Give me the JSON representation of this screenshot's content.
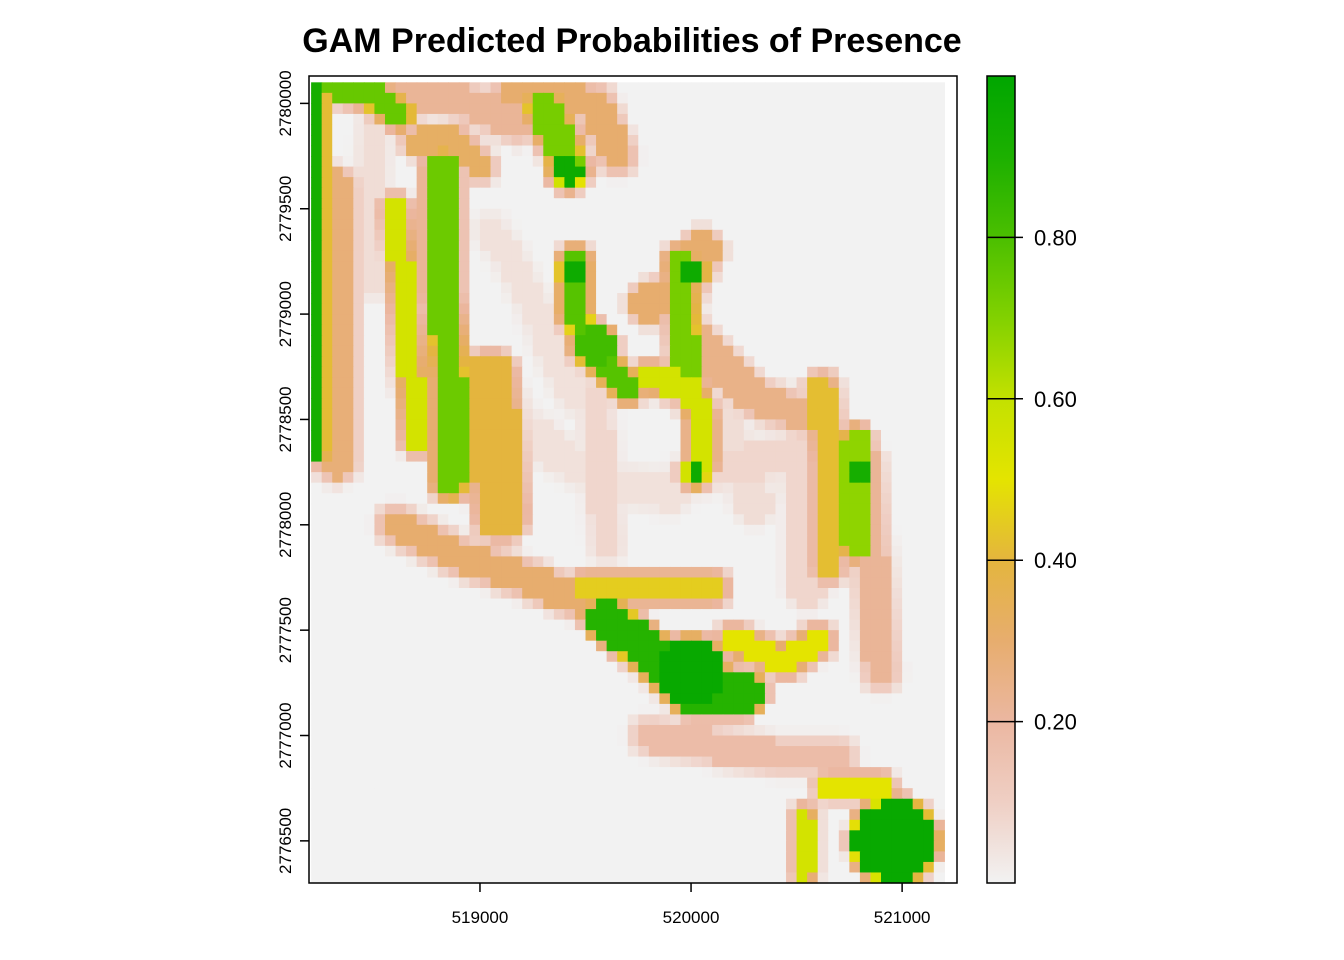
{
  "chart_data": {
    "type": "heatmap",
    "title": "GAM Predicted Probabilities of Presence",
    "xlabel": "",
    "ylabel": "",
    "xlim": [
      518190,
      521260
    ],
    "ylim": [
      2776300,
      2780130
    ],
    "x_ticks": [
      519000,
      520000,
      521000
    ],
    "x_tick_labels": [
      "519000",
      "520000",
      "521000"
    ],
    "y_ticks": [
      2776500,
      2777000,
      2777500,
      2778000,
      2778500,
      2779000,
      2779500,
      2780000
    ],
    "y_tick_labels": [
      "2776500",
      "2777000",
      "2777500",
      "2778000",
      "2778500",
      "2779000",
      "2779500",
      "2780000"
    ],
    "legend": {
      "placement": "right",
      "range": [
        0,
        1
      ],
      "ticks": [
        0.2,
        0.4,
        0.6,
        0.8
      ],
      "tick_labels": [
        "0.20",
        "0.40",
        "0.60",
        "0.80"
      ],
      "color_stops": [
        [
          0.0,
          "#f2f2f2"
        ],
        [
          0.1,
          "#efcfc4"
        ],
        [
          0.2,
          "#ebb7a1"
        ],
        [
          0.3,
          "#e7ad6e"
        ],
        [
          0.4,
          "#e4b53e"
        ],
        [
          0.5,
          "#e4e400"
        ],
        [
          0.6,
          "#c3e100"
        ],
        [
          0.7,
          "#82d100"
        ],
        [
          0.8,
          "#4bbf00"
        ],
        [
          0.9,
          "#1cb000"
        ],
        [
          1.0,
          "#00a600"
        ]
      ]
    },
    "grid": {
      "cell_size": 50,
      "x0": 518200,
      "y0": 2780100,
      "ncols": 61,
      "nrows": 76,
      "background_value": 0.0,
      "features": [
        {
          "kind": "band",
          "xs": [
            518225,
            518225
          ],
          "ys": [
            2780060,
            2778350
          ],
          "w": 70,
          "v": 0.92
        },
        {
          "kind": "band",
          "xs": [
            518250,
            518450,
            518620
          ],
          "ys": [
            2780090,
            2780060,
            2779950
          ],
          "w": 110,
          "v": 0.75
        },
        {
          "kind": "band",
          "xs": [
            518320,
            518320
          ],
          "ys": [
            2779600,
            2778300
          ],
          "w": 160,
          "v": 0.28
        },
        {
          "kind": "band",
          "xs": [
            518500,
            518480,
            518500
          ],
          "ys": [
            2779900,
            2779500,
            2779150
          ],
          "w": 130,
          "v": 0.06
        },
        {
          "kind": "band",
          "xs": [
            518600,
            518800,
            519000,
            519180
          ],
          "ys": [
            2780000,
            2780050,
            2779980,
            2779900
          ],
          "w": 150,
          "v": 0.22
        },
        {
          "kind": "band",
          "xs": [
            518820,
            518820,
            518860,
            518860
          ],
          "ys": [
            2779700,
            2779100,
            2778700,
            2778200
          ],
          "w": 130,
          "v": 0.74
        },
        {
          "kind": "band",
          "xs": [
            518600,
            518650,
            518700
          ],
          "ys": [
            2779500,
            2779000,
            2778400
          ],
          "w": 100,
          "v": 0.55
        },
        {
          "kind": "band",
          "xs": [
            518700,
            518900,
            519000
          ],
          "ys": [
            2779820,
            2779820,
            2779700
          ],
          "w": 110,
          "v": 0.32
        },
        {
          "kind": "band",
          "xs": [
            519300,
            519380,
            519420
          ],
          "ys": [
            2779980,
            2779820,
            2779700
          ],
          "w": 150,
          "v": 0.72
        },
        {
          "kind": "blob",
          "x": 519420,
          "y": 2779680,
          "r": 70,
          "v": 0.95
        },
        {
          "kind": "band",
          "xs": [
            519150,
            519550,
            519650
          ],
          "ys": [
            2780050,
            2780000,
            2779750
          ],
          "w": 140,
          "v": 0.3
        },
        {
          "kind": "band",
          "xs": [
            519050,
            519150,
            519250,
            519350,
            519450
          ],
          "ys": [
            2779400,
            2779250,
            2779050,
            2778800,
            2778600
          ],
          "w": 130,
          "v": 0.05
        },
        {
          "kind": "band",
          "xs": [
            519450,
            519450,
            519550,
            519700
          ],
          "ys": [
            2779250,
            2779000,
            2778800,
            2778650
          ],
          "w": 110,
          "v": 0.78
        },
        {
          "kind": "blob",
          "x": 519440,
          "y": 2779200,
          "r": 55,
          "v": 0.95
        },
        {
          "kind": "blob",
          "x": 519540,
          "y": 2778850,
          "r": 90,
          "v": 0.82
        },
        {
          "kind": "band",
          "xs": [
            519050,
            519100
          ],
          "ys": [
            2778700,
            2778050
          ],
          "w": 230,
          "v": 0.4
        },
        {
          "kind": "band",
          "xs": [
            519100,
            519350,
            519600,
            519900,
            520000
          ],
          "ys": [
            2778550,
            2778350,
            2778200,
            2778150,
            2778250
          ],
          "w": 170,
          "v": 0.05
        },
        {
          "kind": "band",
          "xs": [
            519550,
            519600
          ],
          "ys": [
            2778600,
            2777900
          ],
          "w": 130,
          "v": 0.08
        },
        {
          "kind": "band",
          "xs": [
            519950,
            519980
          ],
          "ys": [
            2779250,
            2778750
          ],
          "w": 110,
          "v": 0.72
        },
        {
          "kind": "blob",
          "x": 520010,
          "y": 2779200,
          "r": 50,
          "v": 0.95
        },
        {
          "kind": "band",
          "xs": [
            519800,
            519950,
            520050
          ],
          "ys": [
            2779050,
            2779100,
            2779300
          ],
          "w": 170,
          "v": 0.3
        },
        {
          "kind": "band",
          "xs": [
            519800,
            520000,
            520050,
            520050
          ],
          "ys": [
            2778700,
            2778650,
            2778500,
            2778300
          ],
          "w": 120,
          "v": 0.55
        },
        {
          "kind": "blob",
          "x": 520020,
          "y": 2778250,
          "r": 50,
          "v": 0.95
        },
        {
          "kind": "band",
          "xs": [
            520150,
            520300
          ],
          "ys": [
            2778500,
            2778100
          ],
          "w": 170,
          "v": 0.06
        },
        {
          "kind": "band",
          "xs": [
            520050,
            520300,
            520500,
            520550,
            520550
          ],
          "ys": [
            2778250,
            2778300,
            2778350,
            2778100,
            2777700
          ],
          "w": 170,
          "v": 0.08
        },
        {
          "kind": "band",
          "xs": [
            520000,
            520300,
            520600
          ],
          "ys": [
            2778900,
            2778600,
            2778500
          ],
          "w": 150,
          "v": 0.25
        },
        {
          "kind": "band",
          "xs": [
            520620,
            520650,
            520650
          ],
          "ys": [
            2778650,
            2778300,
            2777800
          ],
          "w": 120,
          "v": 0.42
        },
        {
          "kind": "band",
          "xs": [
            520780,
            520780
          ],
          "ys": [
            2778400,
            2777900
          ],
          "w": 110,
          "v": 0.68
        },
        {
          "kind": "blob",
          "x": 520780,
          "y": 2778250,
          "r": 60,
          "v": 0.92
        },
        {
          "kind": "band",
          "xs": [
            520820,
            520900
          ],
          "ys": [
            2778300,
            2777300
          ],
          "w": 140,
          "v": 0.22
        },
        {
          "kind": "band",
          "xs": [
            518600,
            518900,
            519200,
            519450,
            519700
          ],
          "ys": [
            2778000,
            2777850,
            2777750,
            2777650,
            2777550
          ],
          "w": 140,
          "v": 0.3
        },
        {
          "kind": "band",
          "xs": [
            519500,
            519800,
            520100
          ],
          "ys": [
            2777700,
            2777700,
            2777700
          ],
          "w": 130,
          "v": 0.45
        },
        {
          "kind": "band",
          "xs": [
            519600,
            519800,
            520000,
            520250
          ],
          "ys": [
            2777550,
            2777400,
            2777200,
            2777200
          ],
          "w": 170,
          "v": 0.88
        },
        {
          "kind": "blob",
          "x": 520000,
          "y": 2777300,
          "r": 150,
          "v": 0.97
        },
        {
          "kind": "band",
          "xs": [
            520200,
            520450,
            520600
          ],
          "ys": [
            2777450,
            2777350,
            2777450
          ],
          "w": 120,
          "v": 0.5
        },
        {
          "kind": "band",
          "xs": [
            519800,
            520100,
            520400,
            520700
          ],
          "ys": [
            2777000,
            2776950,
            2776900,
            2776900
          ],
          "w": 140,
          "v": 0.18
        },
        {
          "kind": "band",
          "xs": [
            520650,
            520900
          ],
          "ys": [
            2776760,
            2776760
          ],
          "w": 90,
          "v": 0.5
        },
        {
          "kind": "blob",
          "x": 520960,
          "y": 2776500,
          "r": 190,
          "v": 0.97
        },
        {
          "kind": "band",
          "xs": [
            520540,
            520540
          ],
          "ys": [
            2776620,
            2776350
          ],
          "w": 70,
          "v": 0.55
        }
      ]
    }
  }
}
